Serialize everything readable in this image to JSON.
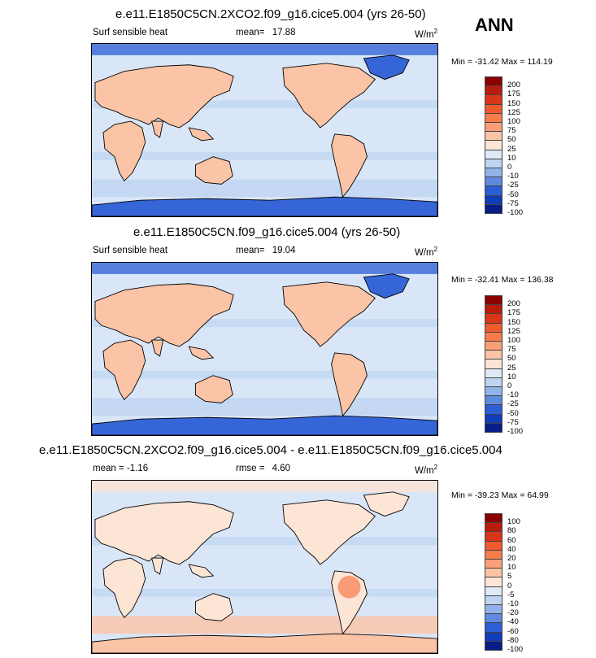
{
  "season_label": "ANN",
  "panels": [
    {
      "title": "e.e11.E1850C5CN.2XCO2.f09_g16.cice5.004 (yrs 26-50)",
      "left_label": "Surf sensible heat",
      "stat_label": "mean=",
      "stat_value": "17.88",
      "units_base": "W/m",
      "units_exp": "2",
      "minmax": "Min = -31.42 Max = 114.19",
      "colorbar_levels": [
        "200",
        "175",
        "150",
        "125",
        "100",
        "75",
        "50",
        "25",
        "10",
        "0",
        "-10",
        "-25",
        "-50",
        "-75",
        "-100"
      ]
    },
    {
      "title": "e.e11.E1850C5CN.f09_g16.cice5.004 (yrs 26-50)",
      "left_label": "Surf sensible heat",
      "stat_label": "mean=",
      "stat_value": "19.04",
      "units_base": "W/m",
      "units_exp": "2",
      "minmax": "Min = -32.41 Max = 136.38",
      "colorbar_levels": [
        "200",
        "175",
        "150",
        "125",
        "100",
        "75",
        "50",
        "25",
        "10",
        "0",
        "-10",
        "-25",
        "-50",
        "-75",
        "-100"
      ]
    },
    {
      "title": "e.e11.E1850C5CN.2XCO2.f09_g16.cice5.004 - e.e11.E1850C5CN.f09_g16.cice5.004",
      "left_label": "mean =  -1.16",
      "stat_label": "rmse =",
      "stat_value": "4.60",
      "units_base": "W/m",
      "units_exp": "2",
      "minmax": "Min = -39.23 Max =  64.99",
      "colorbar_levels": [
        "100",
        "80",
        "60",
        "40",
        "20",
        "10",
        "5",
        "0",
        "-5",
        "-10",
        "-20",
        "-40",
        "-60",
        "-80",
        "-100"
      ]
    }
  ],
  "chart_data": [
    {
      "type": "heatmap",
      "title": "e.e11.E1850C5CN.2XCO2.f09_g16.cice5.004 (yrs 26-50)",
      "variable": "Surf sensible heat",
      "units": "W/m2",
      "mean": 17.88,
      "min": -31.42,
      "max": 114.19,
      "contour_levels": [
        -100,
        -75,
        -50,
        -25,
        -10,
        0,
        10,
        25,
        50,
        75,
        100,
        125,
        150,
        175,
        200
      ]
    },
    {
      "type": "heatmap",
      "title": "e.e11.E1850C5CN.f09_g16.cice5.004 (yrs 26-50)",
      "variable": "Surf sensible heat",
      "units": "W/m2",
      "mean": 19.04,
      "min": -32.41,
      "max": 136.38,
      "contour_levels": [
        -100,
        -75,
        -50,
        -25,
        -10,
        0,
        10,
        25,
        50,
        75,
        100,
        125,
        150,
        175,
        200
      ]
    },
    {
      "type": "heatmap",
      "title": "e.e11.E1850C5CN.2XCO2.f09_g16.cice5.004 - e.e11.E1850C5CN.f09_g16.cice5.004",
      "units": "W/m2",
      "mean": -1.16,
      "rmse": 4.6,
      "min": -39.23,
      "max": 64.99,
      "contour_levels": [
        -100,
        -80,
        -60,
        -40,
        -20,
        -10,
        -5,
        0,
        5,
        10,
        20,
        40,
        60,
        80,
        100
      ]
    }
  ],
  "colorbar_colors": [
    "#8b0000",
    "#b81c0c",
    "#d8361a",
    "#ef5a2e",
    "#f67c4c",
    "#f9a07a",
    "#fbc4a6",
    "#fde5d6",
    "#dfe9f7",
    "#bfd4f1",
    "#92b3ea",
    "#5f8ae0",
    "#2d5ed4",
    "#123cb8",
    "#081d85"
  ],
  "map_colors": {
    "ocean": "#d9e6f7",
    "band_light_warm": "#fde5d6",
    "band_warm": "#fbc4a6",
    "band_hot": "#f67c4c",
    "band_cool": "#bfd4f1",
    "band_cold": "#6d93e2",
    "band_deep_cold": "#3565d6",
    "coast": "#000000"
  }
}
